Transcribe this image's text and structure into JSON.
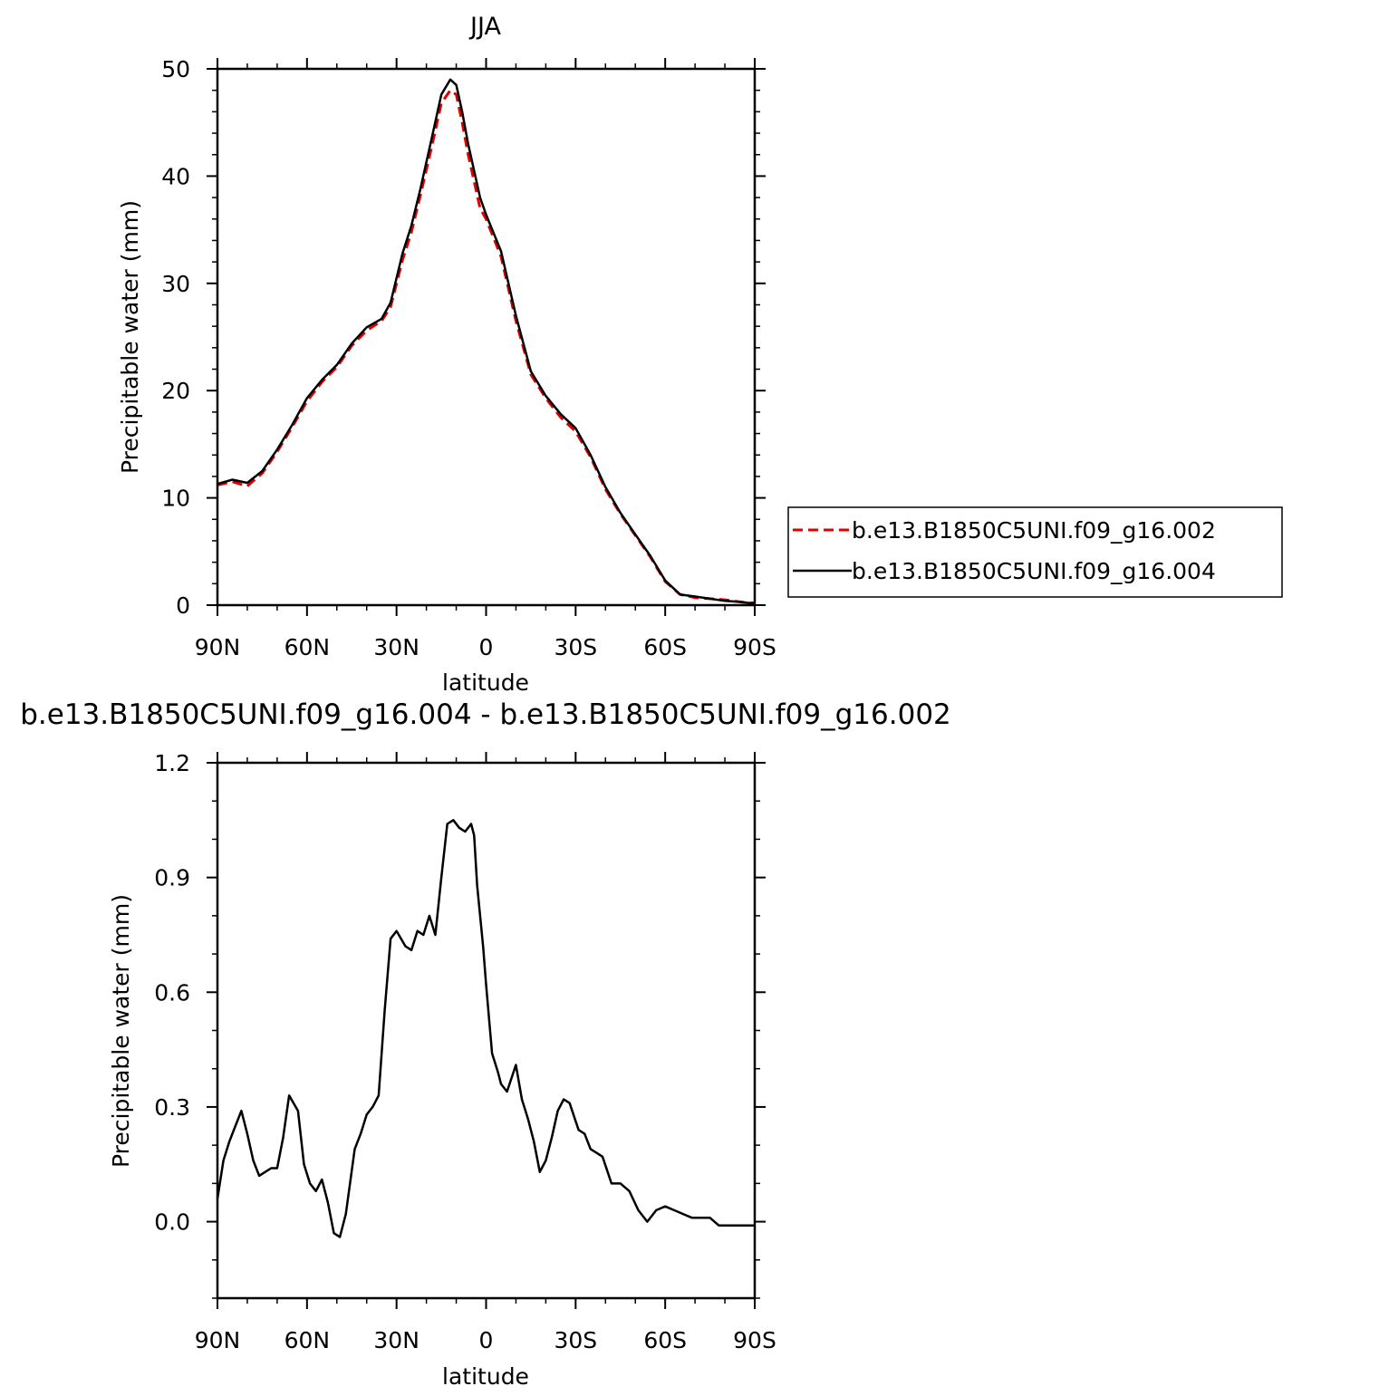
{
  "chart_data": [
    {
      "type": "line",
      "title": "JJA",
      "xlabel": "latitude",
      "ylabel": "Precipitable water (mm)",
      "xlim": [
        90,
        -90
      ],
      "ylim": [
        0,
        50
      ],
      "x_ticks": [
        90,
        60,
        30,
        0,
        -30,
        -60,
        -90
      ],
      "x_tick_labels": [
        "90N",
        "60N",
        "30N",
        "0",
        "30S",
        "60S",
        "90S"
      ],
      "y_ticks": [
        0,
        10,
        20,
        30,
        40,
        50
      ],
      "y_tick_labels": [
        "0",
        "10",
        "20",
        "30",
        "40",
        "50"
      ],
      "legend_position": "right",
      "series": [
        {
          "name": "b.e13.B1850C5UNI.f09_g16.002",
          "color": "#e00000",
          "style": "dashed",
          "x": [
            90,
            85,
            80,
            75,
            70,
            65,
            60,
            55,
            50,
            45,
            40,
            35,
            32,
            28,
            25,
            22,
            18,
            15,
            12,
            10,
            8,
            6,
            4,
            2,
            0,
            -5,
            -10,
            -15,
            -20,
            -25,
            -30,
            -35,
            -40,
            -45,
            -50,
            -55,
            -60,
            -65,
            -70,
            -75,
            -80,
            -85,
            -88,
            -90
          ],
          "y": [
            11.2,
            11.5,
            11.1,
            12.3,
            14.3,
            16.6,
            19.0,
            20.8,
            22.2,
            24.2,
            25.6,
            26.5,
            27.8,
            32.2,
            34.8,
            38.2,
            43.0,
            46.8,
            48.0,
            47.6,
            45.0,
            42.0,
            39.5,
            37.0,
            36.0,
            32.5,
            26.5,
            21.5,
            19.3,
            17.5,
            16.2,
            13.8,
            10.8,
            8.5,
            6.5,
            4.5,
            2.2,
            1.0,
            0.7,
            0.6,
            0.5,
            0.3,
            0.2,
            0.2
          ]
        },
        {
          "name": "b.e13.B1850C5UNI.f09_g16.004",
          "color": "#000000",
          "style": "solid",
          "x": [
            90,
            85,
            80,
            75,
            70,
            65,
            60,
            55,
            50,
            45,
            40,
            35,
            32,
            28,
            25,
            22,
            18,
            15,
            12,
            10,
            8,
            6,
            4,
            2,
            0,
            -5,
            -10,
            -15,
            -20,
            -25,
            -30,
            -35,
            -40,
            -45,
            -50,
            -55,
            -60,
            -65,
            -70,
            -75,
            -80,
            -85,
            -88,
            -90
          ],
          "y": [
            11.3,
            11.7,
            11.4,
            12.5,
            14.5,
            16.8,
            19.3,
            21.0,
            22.4,
            24.4,
            25.9,
            26.7,
            28.2,
            32.8,
            35.4,
            38.8,
            43.8,
            47.6,
            49.0,
            48.5,
            46.0,
            43.0,
            40.5,
            38.0,
            36.4,
            33.0,
            27.0,
            21.8,
            19.5,
            17.8,
            16.5,
            14.0,
            11.0,
            8.6,
            6.6,
            4.6,
            2.3,
            1.0,
            0.8,
            0.6,
            0.4,
            0.3,
            0.2,
            0.2
          ]
        }
      ]
    },
    {
      "type": "line",
      "title": "b.e13.B1850C5UNI.f09_g16.004 - b.e13.B1850C5UNI.f09_g16.002",
      "xlabel": "latitude",
      "ylabel": "Precipitable water (mm)",
      "xlim": [
        90,
        -90
      ],
      "ylim": [
        -0.2,
        1.2
      ],
      "x_ticks": [
        90,
        60,
        30,
        0,
        -30,
        -60,
        -90
      ],
      "x_tick_labels": [
        "90N",
        "60N",
        "30N",
        "0",
        "30S",
        "60S",
        "90S"
      ],
      "y_ticks": [
        0.0,
        0.3,
        0.6,
        0.9,
        1.2
      ],
      "y_tick_labels": [
        "0.0",
        "0.3",
        "0.6",
        "0.9",
        "1.2"
      ],
      "series": [
        {
          "color": "#000000",
          "style": "solid",
          "x": [
            90,
            88,
            86,
            84,
            82,
            80,
            78,
            76,
            74,
            72,
            70,
            68,
            66,
            63,
            61,
            59,
            57,
            55,
            53,
            51,
            49,
            47,
            44,
            42,
            40,
            38,
            36,
            34,
            32,
            30,
            27,
            25,
            23,
            21,
            19,
            17,
            15,
            13,
            11,
            9,
            7,
            5,
            4,
            3,
            1,
            0,
            -2,
            -4,
            -5,
            -7,
            -10,
            -12,
            -14,
            -16,
            -18,
            -20,
            -22,
            -24,
            -26,
            -28,
            -31,
            -33,
            -35,
            -37,
            -39,
            -42,
            -45,
            -48,
            -51,
            -54,
            -57,
            -60,
            -63,
            -66,
            -69,
            -72,
            -75,
            -78,
            -81,
            -84,
            -87,
            -90
          ],
          "y": [
            0.06,
            0.16,
            0.21,
            0.25,
            0.29,
            0.23,
            0.16,
            0.12,
            0.13,
            0.14,
            0.14,
            0.22,
            0.33,
            0.29,
            0.15,
            0.1,
            0.08,
            0.11,
            0.05,
            -0.03,
            -0.04,
            0.02,
            0.19,
            0.23,
            0.28,
            0.3,
            0.33,
            0.55,
            0.74,
            0.76,
            0.72,
            0.71,
            0.76,
            0.75,
            0.8,
            0.75,
            0.9,
            1.04,
            1.05,
            1.03,
            1.02,
            1.04,
            1.01,
            0.88,
            0.72,
            0.62,
            0.44,
            0.39,
            0.36,
            0.34,
            0.41,
            0.32,
            0.27,
            0.21,
            0.13,
            0.16,
            0.22,
            0.29,
            0.32,
            0.31,
            0.24,
            0.23,
            0.19,
            0.18,
            0.17,
            0.1,
            0.1,
            0.08,
            0.03,
            0.0,
            0.03,
            0.04,
            0.03,
            0.02,
            0.01,
            0.01,
            0.01,
            -0.01,
            -0.01,
            -0.01,
            -0.01,
            -0.01
          ]
        }
      ]
    }
  ]
}
